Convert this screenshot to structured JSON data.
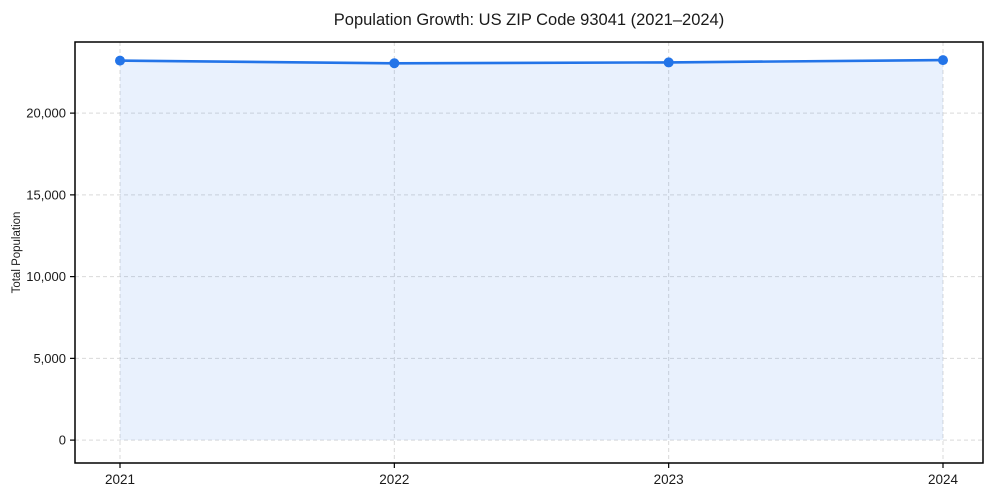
{
  "chart_data": {
    "type": "area",
    "title": "Population Growth: US ZIP Code 93041 (2021–2024)",
    "xlabel": "",
    "ylabel": "Total Population",
    "categories": [
      "2021",
      "2022",
      "2023",
      "2024"
    ],
    "series": [
      {
        "name": "Total Population",
        "values": [
          23210,
          23050,
          23100,
          23240
        ]
      }
    ],
    "yticks": {
      "values": [
        0,
        5000,
        10000,
        15000,
        20000
      ],
      "labels": [
        "0",
        "5,000",
        "10,000",
        "15,000",
        "20,000"
      ]
    },
    "ylim": [
      -1400,
      24350
    ],
    "grid": "dashed-both-axes",
    "legend": "none",
    "colors": {
      "line": "#2374e8",
      "marker": "#2374e8",
      "fill": "#2374e8",
      "fill_opacity": 0.1,
      "grid": "#d9d9d9",
      "spine": "#000000",
      "text": "#1a1a1a",
      "background": "#ffffff"
    }
  }
}
